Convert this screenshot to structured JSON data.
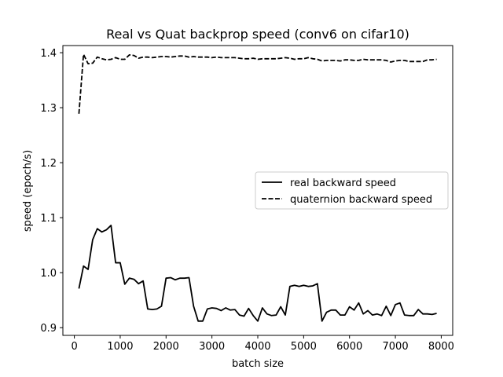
{
  "chart_data": {
    "type": "line",
    "title": "Real vs Quat backprop speed (conv6 on cifar10)",
    "xlabel": "batch size",
    "ylabel": "speed (epoch/s)",
    "xlim": [
      -250,
      8250
    ],
    "ylim": [
      0.886,
      1.413
    ],
    "xticks": [
      0,
      1000,
      2000,
      3000,
      4000,
      5000,
      6000,
      7000,
      8000
    ],
    "yticks": [
      0.9,
      1.0,
      1.1,
      1.2,
      1.3,
      1.4
    ],
    "xtick_labels": [
      "0",
      "1000",
      "2000",
      "3000",
      "4000",
      "5000",
      "6000",
      "7000",
      "8000"
    ],
    "ytick_labels": [
      "0.9",
      "1.0",
      "1.1",
      "1.2",
      "1.3",
      "1.4"
    ],
    "grid": false,
    "legend_position": "center-right",
    "x": [
      100,
      200,
      300,
      400,
      500,
      600,
      700,
      800,
      900,
      1000,
      1100,
      1200,
      1300,
      1400,
      1500,
      1600,
      1700,
      1800,
      1900,
      2000,
      2100,
      2200,
      2300,
      2400,
      2500,
      2600,
      2700,
      2800,
      2900,
      3000,
      3100,
      3200,
      3300,
      3400,
      3500,
      3600,
      3700,
      3800,
      3900,
      4000,
      4100,
      4200,
      4300,
      4400,
      4500,
      4600,
      4700,
      4800,
      4900,
      5000,
      5100,
      5200,
      5300,
      5400,
      5500,
      5600,
      5700,
      5800,
      5900,
      6000,
      6100,
      6200,
      6300,
      6400,
      6500,
      6600,
      6700,
      6800,
      6900,
      7000,
      7100,
      7200,
      7300,
      7400,
      7500,
      7600,
      7700,
      7800,
      7900
    ],
    "series": [
      {
        "name": "real backward speed",
        "style": "solid",
        "color": "#000000",
        "values": [
          0.971,
          1.012,
          1.006,
          1.06,
          1.08,
          1.074,
          1.078,
          1.086,
          1.018,
          1.018,
          0.979,
          0.99,
          0.988,
          0.98,
          0.985,
          0.934,
          0.933,
          0.934,
          0.939,
          0.99,
          0.991,
          0.987,
          0.99,
          0.99,
          0.991,
          0.939,
          0.912,
          0.912,
          0.934,
          0.936,
          0.935,
          0.931,
          0.936,
          0.932,
          0.933,
          0.923,
          0.921,
          0.935,
          0.922,
          0.912,
          0.936,
          0.925,
          0.922,
          0.923,
          0.938,
          0.923,
          0.975,
          0.977,
          0.975,
          0.977,
          0.975,
          0.976,
          0.98,
          0.912,
          0.928,
          0.932,
          0.932,
          0.923,
          0.923,
          0.938,
          0.932,
          0.945,
          0.925,
          0.931,
          0.923,
          0.925,
          0.922,
          0.939,
          0.922,
          0.942,
          0.945,
          0.923,
          0.922,
          0.922,
          0.933,
          0.925,
          0.925,
          0.924,
          0.926
        ]
      },
      {
        "name": "quaternion backward speed",
        "style": "dashed",
        "color": "#000000",
        "values": [
          1.289,
          1.397,
          1.38,
          1.381,
          1.392,
          1.389,
          1.387,
          1.388,
          1.391,
          1.388,
          1.388,
          1.396,
          1.395,
          1.39,
          1.392,
          1.392,
          1.391,
          1.392,
          1.393,
          1.393,
          1.392,
          1.393,
          1.394,
          1.394,
          1.392,
          1.393,
          1.392,
          1.392,
          1.392,
          1.391,
          1.392,
          1.391,
          1.391,
          1.391,
          1.391,
          1.39,
          1.389,
          1.389,
          1.39,
          1.388,
          1.389,
          1.389,
          1.389,
          1.389,
          1.39,
          1.391,
          1.39,
          1.388,
          1.389,
          1.389,
          1.391,
          1.389,
          1.388,
          1.385,
          1.386,
          1.386,
          1.386,
          1.385,
          1.387,
          1.387,
          1.386,
          1.386,
          1.388,
          1.387,
          1.387,
          1.387,
          1.387,
          1.386,
          1.383,
          1.385,
          1.386,
          1.386,
          1.384,
          1.384,
          1.384,
          1.384,
          1.387,
          1.387,
          1.388
        ]
      }
    ]
  }
}
